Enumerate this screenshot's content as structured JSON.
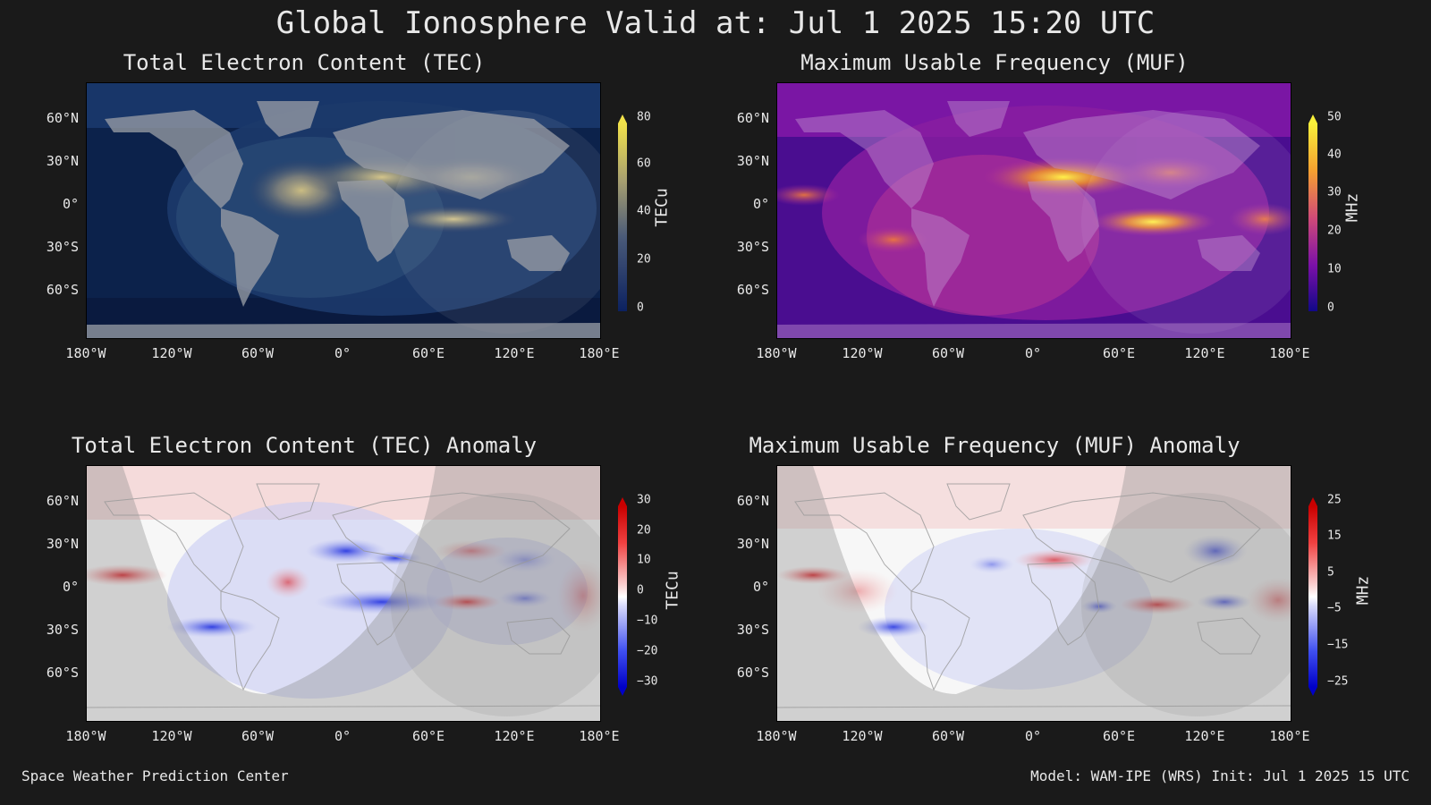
{
  "title": "Global Ionosphere Valid at: Jul 1 2025 15:20 UTC",
  "lat_labels": [
    "60°N",
    "30°N",
    "0°",
    "30°S",
    "60°S"
  ],
  "lon_labels": [
    "180°W",
    "120°W",
    "60°W",
    "0°",
    "60°E",
    "120°E",
    "180°E"
  ],
  "panels": {
    "tec": {
      "title": "Total Electron Content (TEC)",
      "unit": "TECu",
      "ticks": [
        "80",
        "60",
        "40",
        "20",
        "0"
      ]
    },
    "muf": {
      "title": "Maximum Usable Frequency (MUF)",
      "unit": "MHz",
      "ticks": [
        "50",
        "40",
        "30",
        "20",
        "10",
        "0"
      ]
    },
    "tec_anom": {
      "title": "Total Electron Content (TEC) Anomaly",
      "unit": "TECu",
      "ticks": [
        "30",
        "20",
        "10",
        "0",
        "−10",
        "−20",
        "−30"
      ]
    },
    "muf_anom": {
      "title": "Maximum Usable Frequency (MUF) Anomaly",
      "unit": "MHz",
      "ticks": [
        "25",
        "15",
        "5",
        "−5",
        "−15",
        "−25"
      ]
    }
  },
  "footer": {
    "left": "Space Weather Prediction Center",
    "right": "Model: WAM-IPE (WRS) Init: Jul 1 2025 15 UTC"
  },
  "colors": {
    "background": "#1a1a1a",
    "text": "#e8e8e8"
  }
}
